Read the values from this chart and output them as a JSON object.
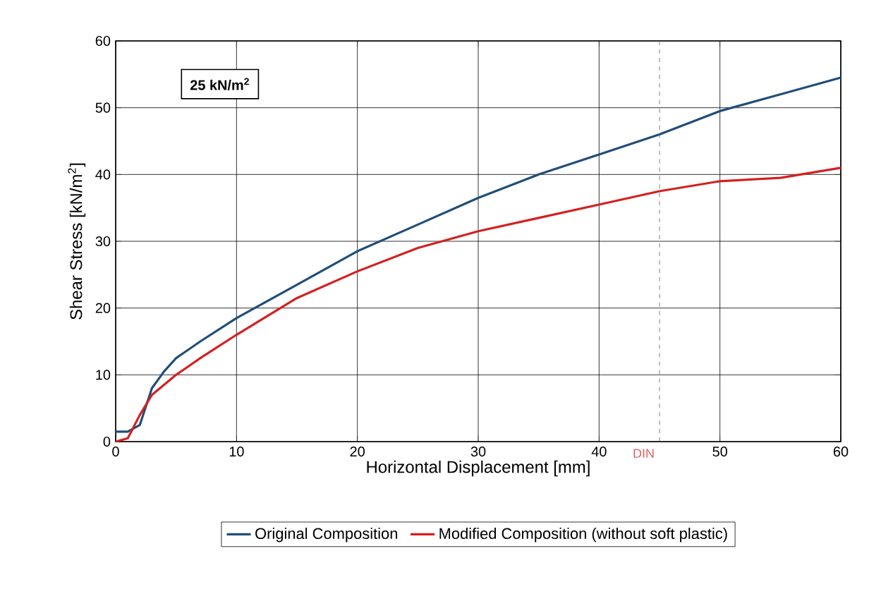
{
  "chart_data": {
    "type": "line",
    "xlabel": "Horizontal Displacement [mm]",
    "ylabel": "Shear Stress  [kN/m$^{2}$]",
    "annotations": [
      "25 kN/m$^{2}$"
    ],
    "xlim": [
      0,
      60
    ],
    "ylim": [
      0,
      60
    ],
    "xticks": [
      0,
      10,
      20,
      30,
      40,
      50,
      60
    ],
    "yticks": [
      0,
      10,
      20,
      30,
      40,
      50,
      60
    ],
    "grid": true,
    "legend": "bottom",
    "marker": "none",
    "line_style": "solid",
    "ref_lines": [
      {
        "axis": "x",
        "value": 45,
        "label": "DIN",
        "color": "#606060",
        "line_style": "dashed"
      }
    ],
    "series": [
      {
        "name": "Original Composition",
        "color": "#1f4e79",
        "x": [
          0,
          1,
          2,
          3,
          4,
          5,
          7,
          10,
          15,
          20,
          25,
          30,
          35,
          40,
          45,
          50,
          55,
          60
        ],
        "values": [
          1.5,
          1.5,
          2.5,
          8,
          10.5,
          12.5,
          15,
          18.5,
          23.5,
          28.5,
          32.5,
          36.5,
          40,
          43,
          46,
          49.5,
          52,
          54.5
        ]
      },
      {
        "name": "Modified Composition (without soft plastic)",
        "color": "#d42020",
        "x": [
          0,
          1,
          2,
          3,
          5,
          7,
          10,
          15,
          20,
          25,
          30,
          35,
          40,
          45,
          50,
          55,
          60
        ],
        "values": [
          0,
          0.5,
          4,
          7,
          10,
          12.5,
          16,
          21.5,
          25.5,
          29,
          31.5,
          33.5,
          35.5,
          37.5,
          39,
          39.5,
          41
        ]
      }
    ]
  }
}
